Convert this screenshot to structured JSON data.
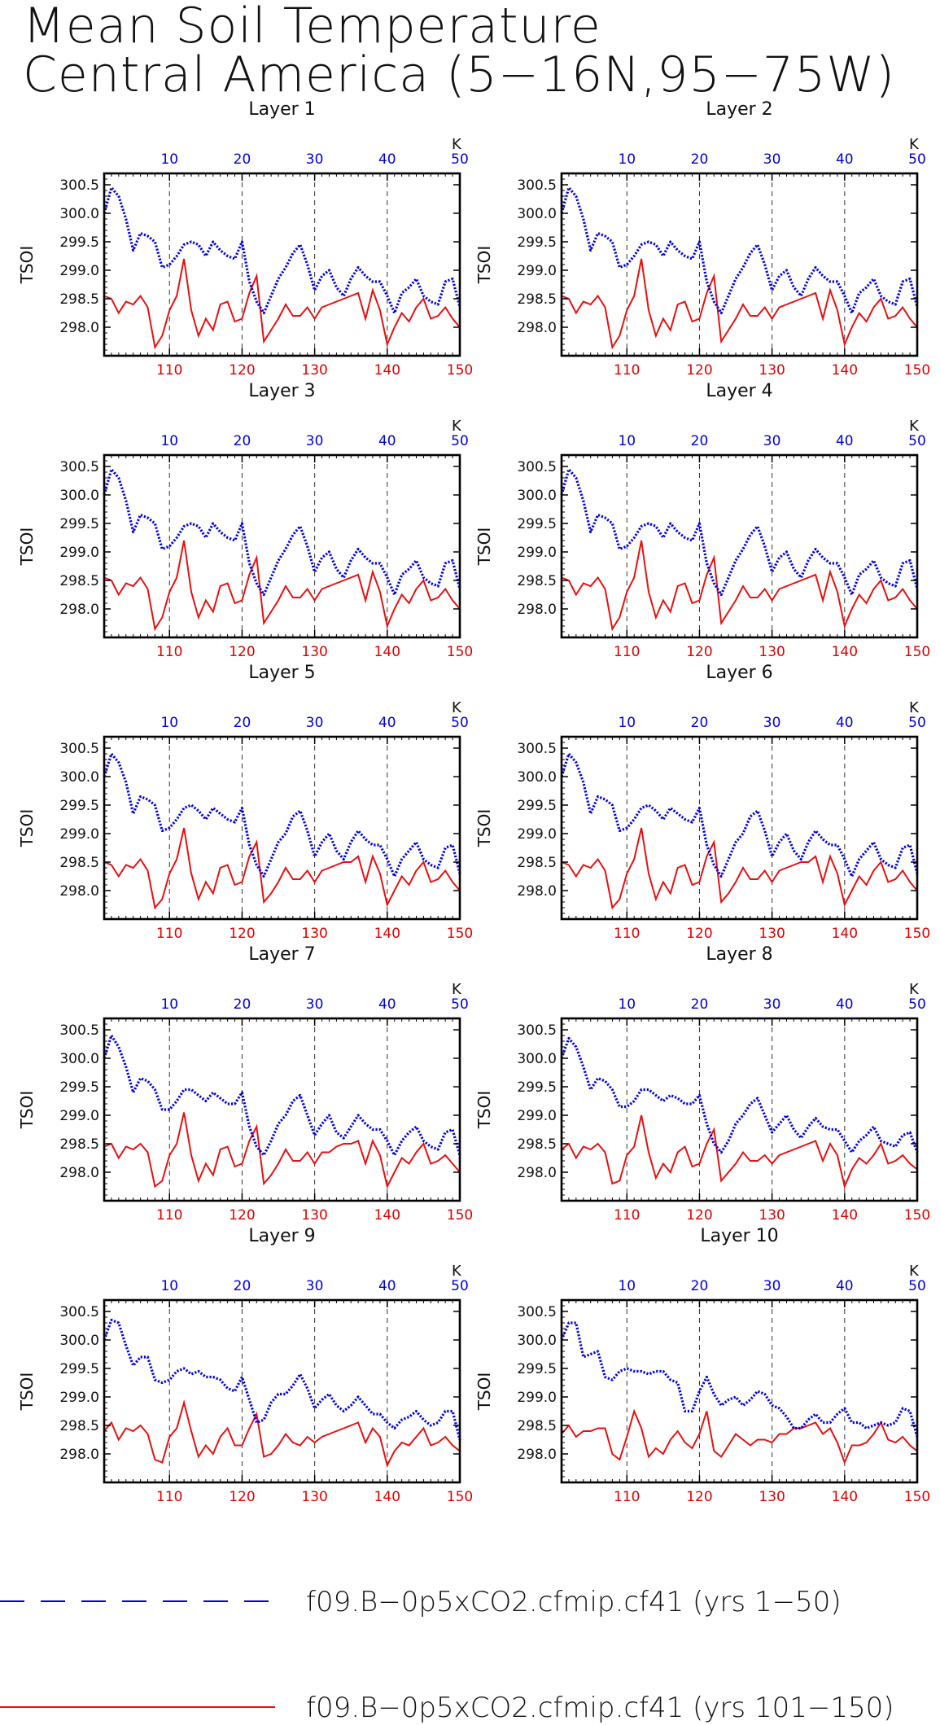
{
  "title": {
    "line1": "Mean Soil Temperature",
    "line2": "Central America (5−16N,95−75W)"
  },
  "colors": {
    "blue": "#0000e8",
    "red": "#e81010"
  },
  "legend": [
    {
      "label": "f09.B−0p5xCO2.cfmip.cf41 (yrs 1−50)",
      "style": "dashed",
      "color": "#0000e8"
    },
    {
      "label": "f09.B−0p5xCO2.cfmip.cf41 (yrs 101−150)",
      "style": "solid",
      "color": "#e81010"
    }
  ],
  "chart_data": {
    "type": "line",
    "ylabel": "TSOI",
    "top_axis_label": "K",
    "top_x_ticks": [
      10,
      20,
      30,
      40,
      50
    ],
    "bottom_x_ticks": [
      110,
      120,
      130,
      140,
      150
    ],
    "y_ticks": [
      298.0,
      298.5,
      299.0,
      299.5,
      300.0,
      300.5
    ],
    "ylim": [
      297.5,
      300.7
    ],
    "top_xlim": [
      1,
      50
    ],
    "bottom_xlim": [
      101,
      150
    ],
    "grid": "vertical dashed at 10,20,30,40",
    "panels": [
      {
        "title": "Layer 1",
        "blue": [
          300.0,
          300.45,
          300.3,
          299.9,
          299.35,
          299.65,
          299.6,
          299.5,
          299.05,
          299.1,
          299.25,
          299.45,
          299.5,
          299.45,
          299.25,
          299.5,
          299.35,
          299.25,
          299.2,
          299.5,
          298.8,
          298.45,
          298.25,
          298.55,
          298.85,
          299.05,
          299.3,
          299.45,
          299.1,
          298.65,
          298.9,
          299.0,
          298.7,
          298.55,
          298.85,
          299.05,
          298.9,
          298.8,
          298.8,
          298.55,
          298.25,
          298.6,
          298.7,
          298.85,
          298.55,
          298.45,
          298.4,
          298.8,
          298.85,
          298.35
        ],
        "red": [
          298.55,
          298.5,
          298.25,
          298.45,
          298.4,
          298.55,
          298.35,
          297.65,
          297.85,
          298.3,
          298.55,
          299.2,
          298.3,
          297.85,
          298.15,
          297.95,
          298.4,
          298.45,
          298.1,
          298.15,
          298.6,
          298.9,
          297.75,
          297.95,
          298.15,
          298.4,
          298.2,
          298.2,
          298.35,
          298.15,
          298.35,
          298.4,
          298.45,
          298.5,
          298.55,
          298.6,
          298.15,
          298.65,
          298.3,
          297.7,
          298.0,
          298.25,
          298.1,
          298.35,
          298.5,
          298.15,
          298.2,
          298.35,
          298.15,
          298.0
        ]
      },
      {
        "title": "Layer 2",
        "blue": [
          300.0,
          300.45,
          300.3,
          299.9,
          299.35,
          299.65,
          299.6,
          299.5,
          299.05,
          299.1,
          299.25,
          299.45,
          299.5,
          299.45,
          299.25,
          299.5,
          299.35,
          299.25,
          299.2,
          299.5,
          298.8,
          298.45,
          298.25,
          298.55,
          298.85,
          299.05,
          299.3,
          299.45,
          299.1,
          298.65,
          298.9,
          299.0,
          298.7,
          298.55,
          298.85,
          299.05,
          298.9,
          298.8,
          298.8,
          298.55,
          298.25,
          298.6,
          298.7,
          298.85,
          298.55,
          298.45,
          298.4,
          298.8,
          298.85,
          298.35
        ],
        "red": [
          298.55,
          298.5,
          298.25,
          298.45,
          298.4,
          298.55,
          298.35,
          297.65,
          297.85,
          298.3,
          298.55,
          299.2,
          298.3,
          297.85,
          298.15,
          297.95,
          298.4,
          298.45,
          298.1,
          298.15,
          298.6,
          298.9,
          297.75,
          297.95,
          298.15,
          298.4,
          298.2,
          298.2,
          298.35,
          298.15,
          298.35,
          298.4,
          298.45,
          298.5,
          298.55,
          298.6,
          298.15,
          298.65,
          298.3,
          297.7,
          298.0,
          298.25,
          298.1,
          298.35,
          298.5,
          298.15,
          298.2,
          298.35,
          298.15,
          298.0
        ]
      },
      {
        "title": "Layer 3",
        "blue": [
          300.0,
          300.45,
          300.3,
          299.9,
          299.35,
          299.65,
          299.6,
          299.5,
          299.05,
          299.1,
          299.25,
          299.45,
          299.5,
          299.45,
          299.25,
          299.5,
          299.35,
          299.25,
          299.2,
          299.5,
          298.8,
          298.45,
          298.25,
          298.55,
          298.85,
          299.05,
          299.3,
          299.45,
          299.1,
          298.65,
          298.9,
          299.0,
          298.7,
          298.55,
          298.85,
          299.05,
          298.9,
          298.8,
          298.8,
          298.55,
          298.25,
          298.6,
          298.7,
          298.85,
          298.55,
          298.45,
          298.4,
          298.8,
          298.85,
          298.35
        ],
        "red": [
          298.55,
          298.5,
          298.25,
          298.45,
          298.4,
          298.55,
          298.35,
          297.65,
          297.85,
          298.3,
          298.55,
          299.2,
          298.3,
          297.85,
          298.15,
          297.95,
          298.4,
          298.45,
          298.1,
          298.15,
          298.6,
          298.9,
          297.75,
          297.95,
          298.15,
          298.4,
          298.2,
          298.2,
          298.35,
          298.15,
          298.35,
          298.4,
          298.45,
          298.5,
          298.55,
          298.6,
          298.15,
          298.65,
          298.3,
          297.7,
          298.0,
          298.25,
          298.1,
          298.35,
          298.5,
          298.15,
          298.2,
          298.35,
          298.15,
          298.0
        ]
      },
      {
        "title": "Layer 4",
        "blue": [
          300.0,
          300.45,
          300.3,
          299.9,
          299.35,
          299.65,
          299.6,
          299.5,
          299.05,
          299.1,
          299.25,
          299.45,
          299.5,
          299.45,
          299.25,
          299.5,
          299.35,
          299.25,
          299.2,
          299.5,
          298.8,
          298.45,
          298.25,
          298.55,
          298.85,
          299.05,
          299.3,
          299.45,
          299.1,
          298.65,
          298.9,
          299.0,
          298.7,
          298.55,
          298.85,
          299.05,
          298.9,
          298.8,
          298.8,
          298.55,
          298.25,
          298.6,
          298.7,
          298.85,
          298.55,
          298.45,
          298.4,
          298.8,
          298.85,
          298.35
        ],
        "red": [
          298.55,
          298.5,
          298.25,
          298.45,
          298.4,
          298.55,
          298.35,
          297.65,
          297.85,
          298.3,
          298.55,
          299.2,
          298.3,
          297.85,
          298.15,
          297.95,
          298.4,
          298.45,
          298.1,
          298.15,
          298.6,
          298.9,
          297.75,
          297.95,
          298.15,
          298.4,
          298.2,
          298.2,
          298.35,
          298.15,
          298.35,
          298.4,
          298.45,
          298.5,
          298.55,
          298.6,
          298.15,
          298.65,
          298.3,
          297.7,
          298.0,
          298.25,
          298.1,
          298.35,
          298.5,
          298.15,
          298.2,
          298.35,
          298.15,
          298.0
        ]
      },
      {
        "title": "Layer 5",
        "blue": [
          300.0,
          300.4,
          300.25,
          299.9,
          299.35,
          299.65,
          299.6,
          299.5,
          299.05,
          299.1,
          299.25,
          299.45,
          299.5,
          299.4,
          299.25,
          299.45,
          299.35,
          299.25,
          299.2,
          299.45,
          298.8,
          298.45,
          298.25,
          298.55,
          298.85,
          299.0,
          299.3,
          299.4,
          299.05,
          298.6,
          298.85,
          299.0,
          298.7,
          298.55,
          298.85,
          299.05,
          298.9,
          298.8,
          298.8,
          298.55,
          298.25,
          298.55,
          298.7,
          298.85,
          298.55,
          298.45,
          298.4,
          298.75,
          298.8,
          298.3
        ],
        "red": [
          298.5,
          298.45,
          298.25,
          298.45,
          298.4,
          298.55,
          298.35,
          297.7,
          297.85,
          298.3,
          298.55,
          299.1,
          298.3,
          297.85,
          298.15,
          297.95,
          298.4,
          298.45,
          298.1,
          298.15,
          298.6,
          298.85,
          297.8,
          297.95,
          298.15,
          298.4,
          298.2,
          298.2,
          298.35,
          298.15,
          298.35,
          298.4,
          298.45,
          298.5,
          298.5,
          298.6,
          298.15,
          298.6,
          298.3,
          297.75,
          298.0,
          298.25,
          298.1,
          298.35,
          298.5,
          298.15,
          298.2,
          298.35,
          298.15,
          298.0
        ]
      },
      {
        "title": "Layer 6",
        "blue": [
          300.0,
          300.4,
          300.25,
          299.9,
          299.35,
          299.65,
          299.6,
          299.5,
          299.05,
          299.1,
          299.25,
          299.45,
          299.5,
          299.4,
          299.25,
          299.45,
          299.35,
          299.25,
          299.2,
          299.45,
          298.8,
          298.45,
          298.25,
          298.55,
          298.85,
          299.0,
          299.3,
          299.4,
          299.05,
          298.6,
          298.85,
          299.0,
          298.7,
          298.55,
          298.85,
          299.05,
          298.9,
          298.8,
          298.8,
          298.55,
          298.25,
          298.55,
          298.7,
          298.85,
          298.55,
          298.45,
          298.4,
          298.75,
          298.8,
          298.3
        ],
        "red": [
          298.5,
          298.45,
          298.25,
          298.45,
          298.4,
          298.55,
          298.35,
          297.7,
          297.85,
          298.3,
          298.55,
          299.1,
          298.3,
          297.85,
          298.15,
          297.95,
          298.4,
          298.45,
          298.1,
          298.15,
          298.6,
          298.85,
          297.8,
          297.95,
          298.15,
          298.4,
          298.2,
          298.2,
          298.35,
          298.15,
          298.35,
          298.4,
          298.45,
          298.5,
          298.5,
          298.6,
          298.15,
          298.6,
          298.3,
          297.75,
          298.0,
          298.25,
          298.1,
          298.35,
          298.5,
          298.15,
          298.2,
          298.35,
          298.15,
          298.0
        ]
      },
      {
        "title": "Layer 7",
        "blue": [
          300.0,
          300.4,
          300.2,
          299.85,
          299.4,
          299.65,
          299.6,
          299.45,
          299.1,
          299.1,
          299.25,
          299.45,
          299.45,
          299.35,
          299.25,
          299.4,
          299.3,
          299.2,
          299.2,
          299.4,
          298.8,
          298.45,
          298.3,
          298.55,
          298.85,
          299.0,
          299.25,
          299.35,
          299.0,
          298.65,
          298.85,
          299.0,
          298.7,
          298.6,
          298.8,
          299.0,
          298.85,
          298.75,
          298.75,
          298.55,
          298.3,
          298.55,
          298.7,
          298.8,
          298.55,
          298.45,
          298.4,
          298.7,
          298.75,
          298.3
        ],
        "red": [
          298.45,
          298.5,
          298.25,
          298.45,
          298.4,
          298.5,
          298.35,
          297.75,
          297.85,
          298.3,
          298.5,
          299.05,
          298.3,
          297.85,
          298.15,
          297.95,
          298.4,
          298.45,
          298.1,
          298.15,
          298.55,
          298.8,
          297.8,
          297.95,
          298.15,
          298.4,
          298.2,
          298.2,
          298.35,
          298.15,
          298.35,
          298.35,
          298.45,
          298.5,
          298.5,
          298.55,
          298.15,
          298.55,
          298.3,
          297.75,
          298.0,
          298.25,
          298.15,
          298.35,
          298.5,
          298.15,
          298.2,
          298.3,
          298.15,
          298.0
        ]
      },
      {
        "title": "Layer 8",
        "blue": [
          300.0,
          300.35,
          300.2,
          299.85,
          299.45,
          299.65,
          299.6,
          299.45,
          299.15,
          299.15,
          299.25,
          299.45,
          299.45,
          299.35,
          299.25,
          299.35,
          299.3,
          299.2,
          299.2,
          299.35,
          298.85,
          298.5,
          298.35,
          298.55,
          298.85,
          299.0,
          299.2,
          299.3,
          299.0,
          298.7,
          298.85,
          299.0,
          298.75,
          298.6,
          298.8,
          298.95,
          298.8,
          298.75,
          298.75,
          298.55,
          298.35,
          298.55,
          298.65,
          298.8,
          298.55,
          298.5,
          298.45,
          298.65,
          298.7,
          298.35
        ],
        "red": [
          298.4,
          298.5,
          298.25,
          298.45,
          298.4,
          298.5,
          298.35,
          297.8,
          297.85,
          298.3,
          298.45,
          299.0,
          298.35,
          297.9,
          298.15,
          298.0,
          298.35,
          298.45,
          298.1,
          298.15,
          298.5,
          298.75,
          297.85,
          298.0,
          298.15,
          298.35,
          298.2,
          298.2,
          298.3,
          298.15,
          298.3,
          298.35,
          298.4,
          298.45,
          298.5,
          298.55,
          298.2,
          298.5,
          298.3,
          297.75,
          298.05,
          298.25,
          298.15,
          298.3,
          298.5,
          298.15,
          298.2,
          298.3,
          298.15,
          298.05
        ]
      },
      {
        "title": "Layer 9",
        "blue": [
          300.0,
          300.35,
          300.3,
          299.9,
          299.55,
          299.7,
          299.7,
          299.3,
          299.25,
          299.3,
          299.45,
          299.5,
          299.4,
          299.45,
          299.35,
          299.35,
          299.3,
          299.15,
          299.1,
          299.35,
          298.95,
          298.55,
          298.6,
          298.9,
          299.05,
          299.05,
          299.2,
          299.4,
          299.15,
          298.8,
          298.95,
          299.05,
          298.85,
          298.75,
          298.85,
          299.0,
          298.85,
          298.7,
          298.7,
          298.55,
          298.45,
          298.6,
          298.65,
          298.75,
          298.6,
          298.5,
          298.55,
          298.75,
          298.75,
          298.25
        ],
        "red": [
          298.4,
          298.55,
          298.25,
          298.45,
          298.4,
          298.5,
          298.35,
          297.9,
          297.85,
          298.3,
          298.45,
          298.9,
          298.4,
          297.95,
          298.15,
          298.0,
          298.3,
          298.45,
          298.15,
          298.15,
          298.45,
          298.7,
          297.95,
          298.0,
          298.15,
          298.35,
          298.2,
          298.15,
          298.3,
          298.2,
          298.3,
          298.35,
          298.4,
          298.45,
          298.5,
          298.55,
          298.2,
          298.45,
          298.3,
          297.8,
          298.05,
          298.2,
          298.15,
          298.3,
          298.45,
          298.15,
          298.2,
          298.3,
          298.15,
          298.05
        ]
      },
      {
        "title": "Layer 10",
        "blue": [
          300.0,
          300.3,
          300.3,
          299.7,
          299.75,
          299.8,
          299.35,
          299.3,
          299.45,
          299.5,
          299.45,
          299.45,
          299.4,
          299.45,
          299.45,
          299.3,
          299.25,
          298.75,
          298.75,
          299.1,
          299.35,
          299.05,
          298.85,
          298.95,
          299.0,
          298.85,
          298.95,
          299.1,
          299.05,
          298.85,
          298.8,
          298.65,
          298.45,
          298.45,
          298.6,
          298.7,
          298.55,
          298.55,
          298.7,
          298.8,
          298.55,
          298.55,
          298.45,
          298.5,
          298.55,
          298.5,
          298.55,
          298.8,
          298.75,
          298.3
        ],
        "red": [
          298.35,
          298.5,
          298.3,
          298.4,
          298.4,
          298.45,
          298.45,
          298.0,
          297.9,
          298.3,
          298.75,
          298.45,
          297.95,
          298.1,
          298.0,
          298.25,
          298.4,
          298.2,
          298.1,
          298.35,
          298.75,
          298.05,
          297.95,
          298.15,
          298.35,
          298.25,
          298.15,
          298.25,
          298.25,
          298.2,
          298.35,
          298.35,
          298.45,
          298.45,
          298.5,
          298.55,
          298.35,
          298.45,
          298.2,
          297.85,
          298.15,
          298.15,
          298.2,
          298.35,
          298.55,
          298.25,
          298.2,
          298.3,
          298.15,
          298.05
        ]
      }
    ]
  }
}
